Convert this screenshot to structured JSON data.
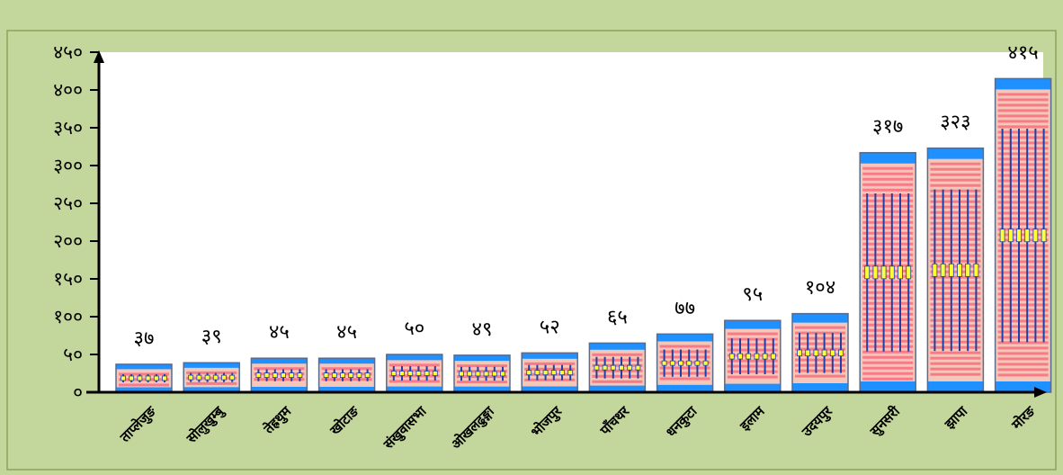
{
  "chart_data": {
    "type": "bar",
    "title": "",
    "xlabel": "",
    "ylabel": "",
    "categories": [
      "ताप्लेजुङ",
      "सोलुखुम्बु",
      "तेह्रथुम",
      "खोटाङ",
      "संखुवासभा",
      "ओखलढुङ्गा",
      "भोजपुर",
      "पाँचथर",
      "धनकुटा",
      "इलाम",
      "उदयपुर",
      "सुनसरी",
      "झापा",
      "मोरङ"
    ],
    "values": [
      37,
      39,
      45,
      45,
      50,
      49,
      52,
      65,
      77,
      95,
      104,
      317,
      323,
      415
    ],
    "value_labels": [
      "३७",
      "३९",
      "४५",
      "४५",
      "५०",
      "४९",
      "५२",
      "६५",
      "७७",
      "९५",
      "१०४",
      "३१७",
      "३२३",
      "४१५"
    ],
    "y_ticks": [
      0,
      50,
      100,
      150,
      200,
      250,
      300,
      350,
      400,
      450
    ],
    "y_tick_labels": [
      "०",
      "५०",
      "१००",
      "१५०",
      "२००",
      "२५०",
      "३००",
      "३५०",
      "४००",
      "४५०"
    ],
    "ylim": [
      0,
      450
    ],
    "grid": false,
    "legend": "none",
    "colors": {
      "background": "#c3d69b",
      "plot_area": "#ffffff",
      "bar_fill": "#f4c7b8",
      "bar_stripe": "#ff3860",
      "bar_cap": "#1e90ff",
      "bar_center": "#1f3fa8",
      "bar_highlight": "#ffff33",
      "bar_border": "#5a6b8c",
      "axis": "#000000"
    }
  }
}
